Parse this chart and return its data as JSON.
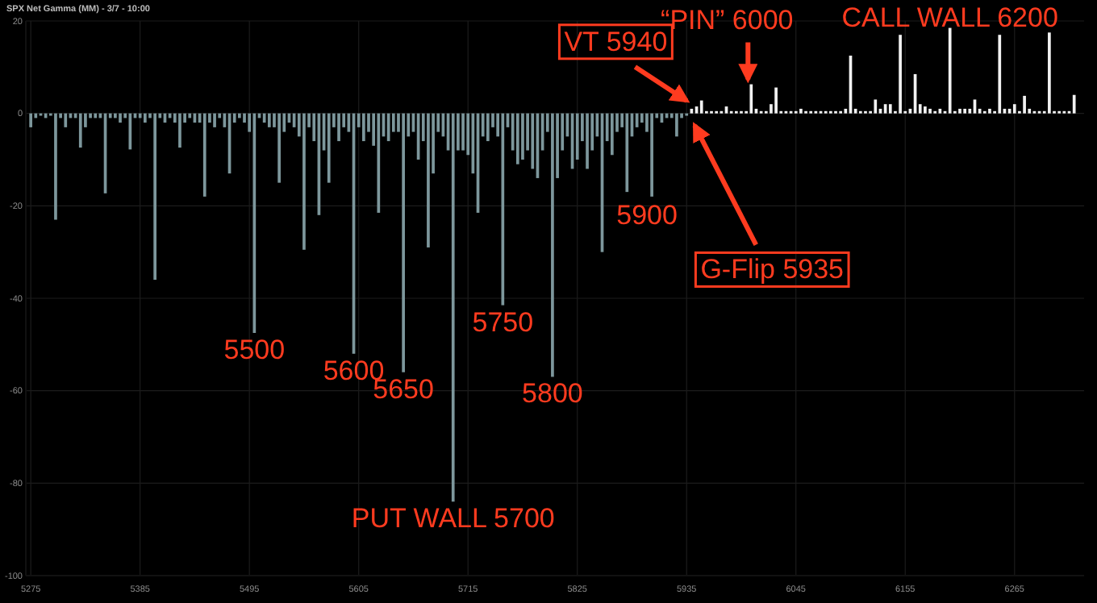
{
  "chart_data": {
    "type": "bar",
    "title": "SPX Net Gamma (MM) - 3/7 - 10:00",
    "xlim": [
      5270,
      6335
    ],
    "xticks": [
      5275,
      5385,
      5495,
      5605,
      5715,
      5825,
      5935,
      6045,
      6155,
      6265
    ],
    "ylim": [
      -100,
      20
    ],
    "yticks": [
      -100,
      -80,
      -60,
      -40,
      -20,
      0,
      20
    ],
    "grid": true,
    "series": [
      {
        "color": "#7d979c",
        "x": [
          5275,
          5280,
          5285,
          5290,
          5295,
          5300,
          5305,
          5310,
          5315,
          5320,
          5325,
          5330,
          5335,
          5340,
          5345,
          5350,
          5355,
          5360,
          5365,
          5370,
          5375,
          5380,
          5385,
          5390,
          5395,
          5400,
          5405,
          5410,
          5415,
          5420,
          5425,
          5430,
          5435,
          5440,
          5445,
          5450,
          5455,
          5460,
          5465,
          5470,
          5475,
          5480,
          5485,
          5490,
          5495,
          5500,
          5505,
          5510,
          5515,
          5520,
          5525,
          5530,
          5535,
          5540,
          5545,
          5550,
          5555,
          5560,
          5565,
          5570,
          5575,
          5580,
          5585,
          5590,
          5595,
          5600,
          5605,
          5610,
          5615,
          5620,
          5625,
          5630,
          5635,
          5640,
          5645,
          5650,
          5655,
          5660,
          5665,
          5670,
          5675,
          5680,
          5685,
          5690,
          5695,
          5700,
          5705,
          5710,
          5715,
          5720,
          5725,
          5730,
          5735,
          5740,
          5745,
          5750,
          5755,
          5760,
          5765,
          5770,
          5775,
          5780,
          5785,
          5790,
          5795,
          5800,
          5805,
          5810,
          5815,
          5820,
          5825,
          5830,
          5835,
          5840,
          5845,
          5850,
          5855,
          5860,
          5865,
          5870,
          5875,
          5880,
          5885,
          5890,
          5895,
          5900,
          5905,
          5910,
          5915,
          5920,
          5925,
          5930,
          5935
        ],
        "values": [
          -3,
          -1,
          -0.5,
          -1,
          -0.5,
          -23,
          -1,
          -3,
          -1,
          -1,
          -7.4,
          -3,
          -1,
          -1,
          -1,
          -17.3,
          -1,
          -1,
          -2,
          -1,
          -7.8,
          -1,
          -1,
          -2,
          -1,
          -36,
          -1,
          -2,
          -1,
          -2,
          -7.4,
          -2,
          -1,
          -2,
          -2,
          -18,
          -2,
          -3,
          -1,
          -3,
          -13,
          -2,
          -1,
          -2,
          -4,
          -47.5,
          -1,
          -2,
          -3,
          -3,
          -15,
          -4,
          -2,
          -3,
          -5,
          -29.5,
          -3,
          -6,
          -22,
          -8,
          -15,
          -3,
          -6,
          -3,
          -4,
          -52,
          -3,
          -6,
          -4,
          -7,
          -21.5,
          -5,
          -6,
          -4,
          -4,
          -56,
          -5,
          -4,
          -10,
          -6,
          -29,
          -13,
          -4,
          -5,
          -8,
          -84,
          -8,
          -8,
          -9,
          -13,
          -21.5,
          -5,
          -6,
          -3,
          -5,
          -41.5,
          -3,
          -8,
          -11,
          -10,
          -8,
          -12,
          -14,
          -8,
          -4,
          -57,
          -14,
          -8,
          -5,
          -12,
          -10,
          -6,
          -12,
          -8,
          -5,
          -30,
          -6,
          -9,
          -4,
          -3,
          -17,
          -5,
          -3,
          -2,
          -4,
          -18,
          -1,
          -2,
          -1,
          -1,
          -5,
          -1,
          -0.5
        ]
      },
      {
        "color": "#f2f2f2",
        "x": [
          5940,
          5945,
          5950,
          5955,
          5960,
          5965,
          5970,
          5975,
          5980,
          5985,
          5990,
          5995,
          6000,
          6005,
          6010,
          6015,
          6020,
          6025,
          6030,
          6035,
          6040,
          6045,
          6050,
          6055,
          6060,
          6065,
          6070,
          6075,
          6080,
          6085,
          6090,
          6095,
          6100,
          6105,
          6110,
          6115,
          6120,
          6125,
          6130,
          6135,
          6140,
          6145,
          6150,
          6155,
          6160,
          6165,
          6170,
          6175,
          6180,
          6185,
          6190,
          6195,
          6200,
          6205,
          6210,
          6215,
          6220,
          6225,
          6230,
          6235,
          6240,
          6245,
          6250,
          6255,
          6260,
          6265,
          6270,
          6275,
          6280,
          6285,
          6290,
          6295,
          6300,
          6305,
          6310,
          6315,
          6320,
          6325
        ],
        "values": [
          1,
          1.5,
          2.8,
          0.5,
          0.5,
          0.5,
          0.5,
          1.5,
          0.5,
          0.5,
          0.5,
          0.5,
          6.3,
          1,
          0.5,
          0.5,
          2,
          5.6,
          0.5,
          0.5,
          0.5,
          0.5,
          1,
          0.5,
          0.5,
          0.5,
          0.5,
          0.5,
          0.5,
          0.5,
          0.5,
          1,
          12.5,
          1,
          0.5,
          0.5,
          0.5,
          3,
          1,
          2,
          2,
          0.5,
          17,
          0.5,
          1,
          8.5,
          2,
          1.5,
          1,
          0.5,
          1,
          0.5,
          18.5,
          0.5,
          1,
          1,
          1,
          3,
          1,
          0.5,
          1,
          0.5,
          17,
          1,
          1,
          2,
          0.5,
          3.8,
          1,
          0.5,
          0.5,
          0.5,
          17.5,
          0.5,
          0.5,
          0.5,
          0.5,
          4
        ]
      }
    ],
    "annotations": [
      {
        "text": "VT 5940",
        "x": 5940,
        "y": 1
      },
      {
        "text": "“PIN” 6000",
        "x": 6000,
        "y": 6.3
      },
      {
        "text": "CALL WALL 6200",
        "x": 6200,
        "y": 18.5
      },
      {
        "text": "5900",
        "x": 5900,
        "y": -18
      },
      {
        "text": "G-Flip 5935",
        "x": 5935,
        "y": -0.5
      },
      {
        "text": "5500",
        "x": 5500,
        "y": -47.5
      },
      {
        "text": "5600",
        "x": 5600,
        "y": -52
      },
      {
        "text": "5650",
        "x": 5650,
        "y": -56
      },
      {
        "text": "5750",
        "x": 5750,
        "y": -41.5
      },
      {
        "text": "5800",
        "x": 5800,
        "y": -57
      },
      {
        "text": "PUT WALL 5700",
        "x": 5700,
        "y": -84
      }
    ]
  }
}
